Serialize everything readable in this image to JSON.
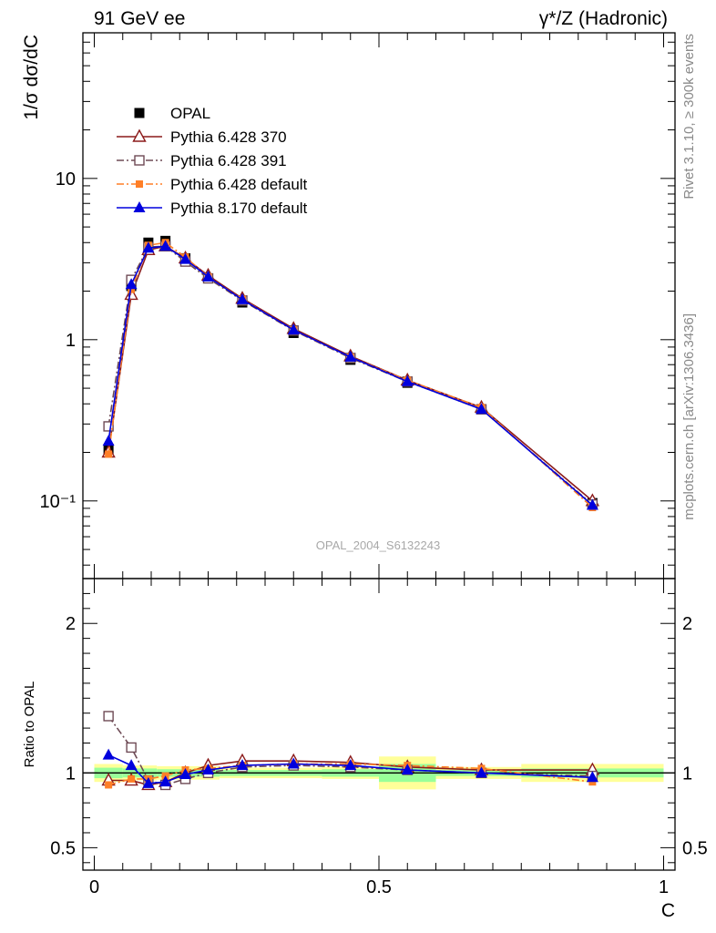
{
  "header": {
    "left": "91 GeV ee",
    "right": "γ*/Z (Hadronic)"
  },
  "side": {
    "top": "Rivet 3.1.10, ≥ 300k events",
    "bottom": "mcplots.cern.ch [arXiv:1306.3436]"
  },
  "watermark": "OPAL_2004_S6132243",
  "chart_data": [
    {
      "type": "line",
      "panel": "main",
      "xlabel": "C",
      "ylabel": "1/σ dσ/dC",
      "yscale": "log",
      "xlim": [
        -0.02,
        1.02
      ],
      "ylim": [
        0.033,
        80
      ],
      "yticks": [
        {
          "value": 0.1,
          "label": "10⁻¹"
        },
        {
          "value": 1,
          "label": "1"
        },
        {
          "value": 10,
          "label": "10"
        }
      ],
      "x": [
        0.025,
        0.065,
        0.095,
        0.125,
        0.16,
        0.2,
        0.26,
        0.35,
        0.45,
        0.55,
        0.68,
        0.875
      ],
      "legend_position": "top-left",
      "series": [
        {
          "name": "OPAL",
          "color": "#000000",
          "marker": "square-filled",
          "line": "none",
          "values": [
            0.21,
            2.15,
            4.0,
            4.1,
            3.2,
            2.4,
            1.7,
            1.1,
            0.75,
            0.54,
            0.37,
            0.097
          ]
        },
        {
          "name": "Pythia 6.428 370",
          "color": "#8b1a1a",
          "marker": "triangle-open",
          "line": "solid",
          "values": [
            0.2,
            1.9,
            3.6,
            3.8,
            3.2,
            2.5,
            1.8,
            1.17,
            0.79,
            0.56,
            0.38,
            0.1
          ]
        },
        {
          "name": "Pythia 6.428 391",
          "color": "#6e4a55",
          "marker": "square-open",
          "line": "dashdot",
          "values": [
            0.29,
            2.35,
            3.75,
            3.8,
            3.05,
            2.4,
            1.75,
            1.14,
            0.77,
            0.55,
            0.37,
            0.095
          ]
        },
        {
          "name": "Pythia 6.428 default",
          "color": "#ff7f27",
          "marker": "square-filled-small",
          "line": "dashdot",
          "values": [
            0.195,
            2.05,
            3.85,
            4.0,
            3.25,
            2.45,
            1.78,
            1.15,
            0.78,
            0.56,
            0.38,
            0.091
          ]
        },
        {
          "name": "Pythia 8.170 default",
          "color": "#0000dd",
          "marker": "triangle-filled",
          "line": "solid",
          "values": [
            0.235,
            2.2,
            3.7,
            3.8,
            3.15,
            2.45,
            1.77,
            1.15,
            0.78,
            0.55,
            0.37,
            0.094
          ]
        }
      ]
    },
    {
      "type": "line",
      "panel": "ratio",
      "xlabel": "C",
      "ylabel": "Ratio to OPAL",
      "xlim": [
        -0.02,
        1.02
      ],
      "ylim": [
        0.35,
        2.3
      ],
      "xticks": [
        {
          "value": 0,
          "label": "0"
        },
        {
          "value": 0.5,
          "label": "0.5"
        },
        {
          "value": 1,
          "label": "1"
        }
      ],
      "yticks": [
        {
          "value": 0.5,
          "label": "0.5"
        },
        {
          "value": 1,
          "label": "1"
        },
        {
          "value": 2,
          "label": "2"
        }
      ],
      "x": [
        0.025,
        0.065,
        0.095,
        0.125,
        0.16,
        0.2,
        0.26,
        0.35,
        0.45,
        0.55,
        0.68,
        0.875
      ],
      "bin_edges": [
        0,
        0.05,
        0.08,
        0.11,
        0.14,
        0.18,
        0.22,
        0.3,
        0.4,
        0.5,
        0.6,
        0.75,
        1.0
      ],
      "band_stat": [
        0.035,
        0.03,
        0.03,
        0.025,
        0.025,
        0.025,
        0.02,
        0.02,
        0.025,
        0.06,
        0.02,
        0.03
      ],
      "band_total": [
        0.06,
        0.05,
        0.05,
        0.045,
        0.045,
        0.045,
        0.035,
        0.035,
        0.04,
        0.11,
        0.04,
        0.06
      ],
      "band_colors": {
        "total": "#ffff99",
        "stat": "#99ff99"
      },
      "series": [
        {
          "name": "Pythia 6.428 370",
          "color": "#8b1a1a",
          "marker": "triangle-open",
          "line": "solid",
          "values": [
            0.95,
            0.95,
            0.92,
            0.94,
            1.0,
            1.05,
            1.08,
            1.08,
            1.07,
            1.04,
            1.02,
            1.02
          ]
        },
        {
          "name": "Pythia 6.428 391",
          "color": "#6e4a55",
          "marker": "square-open",
          "line": "dashdot",
          "values": [
            1.38,
            1.17,
            0.95,
            0.92,
            0.96,
            1.0,
            1.04,
            1.05,
            1.04,
            1.02,
            1.0,
            0.98
          ]
        },
        {
          "name": "Pythia 6.428 default",
          "color": "#ff7f27",
          "marker": "square-filled-small",
          "line": "dashdot",
          "values": [
            0.92,
            0.96,
            0.96,
            0.98,
            1.02,
            1.03,
            1.05,
            1.06,
            1.06,
            1.05,
            1.03,
            0.94
          ]
        },
        {
          "name": "Pythia 8.170 default",
          "color": "#0000dd",
          "marker": "triangle-filled",
          "line": "solid",
          "values": [
            1.12,
            1.05,
            0.93,
            0.94,
            0.99,
            1.02,
            1.05,
            1.06,
            1.05,
            1.02,
            1.0,
            0.97
          ]
        }
      ]
    }
  ]
}
